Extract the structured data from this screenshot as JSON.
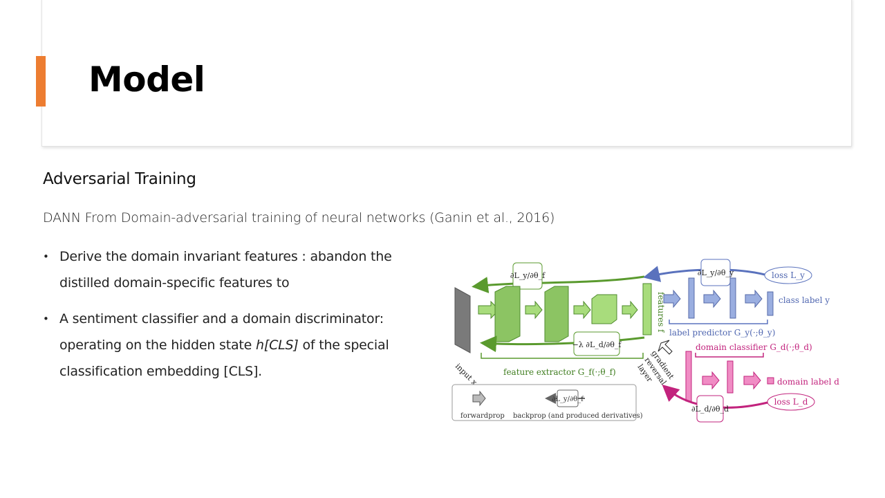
{
  "slide": {
    "title": "Model",
    "subheading": "Adversarial Training",
    "intro": "DANN From Domain-adversarial training of neural networks (Ganin et al., 2016)",
    "bullets": [
      {
        "text": "Derive the domain invariant features : abandon the distilled domain-specific features to"
      },
      {
        "text_before": "A sentiment classifier and a domain discriminator: operating on the hidden state ",
        "emphasis": "h[CLS]",
        "text_after": " of the special classification embedding [CLS]."
      }
    ]
  },
  "figure": {
    "feature_extractor_label": "feature extractor G_f(·;θ_f)",
    "features_label": "features f",
    "label_predictor_label": "label predictor G_y(·;θ_y)",
    "domain_classifier_label": "domain classifier G_d(·;θ_d)",
    "class_label": "class label y",
    "domain_label": "domain label d",
    "loss_y": "loss L_y",
    "loss_d": "loss L_d",
    "input_label": "input x",
    "grl_label": [
      "gradient",
      "reversal",
      "layer"
    ],
    "grad_ly_thetaf": "∂L_y/∂θ_f",
    "grad_ly_thetay": "∂L_y/∂θ_y",
    "grad_ld_thetad": "∂L_d/∂θ_d",
    "reversed_grad": "−λ ∂L_d/∂θ_f",
    "legend_forward": "forwardprop",
    "legend_backprop": "backprop (and produced derivatives)",
    "colors": {
      "green": "#5a9a2e",
      "blue": "#5a72bd",
      "pink": "#c2237d",
      "gray": "#777777"
    }
  }
}
